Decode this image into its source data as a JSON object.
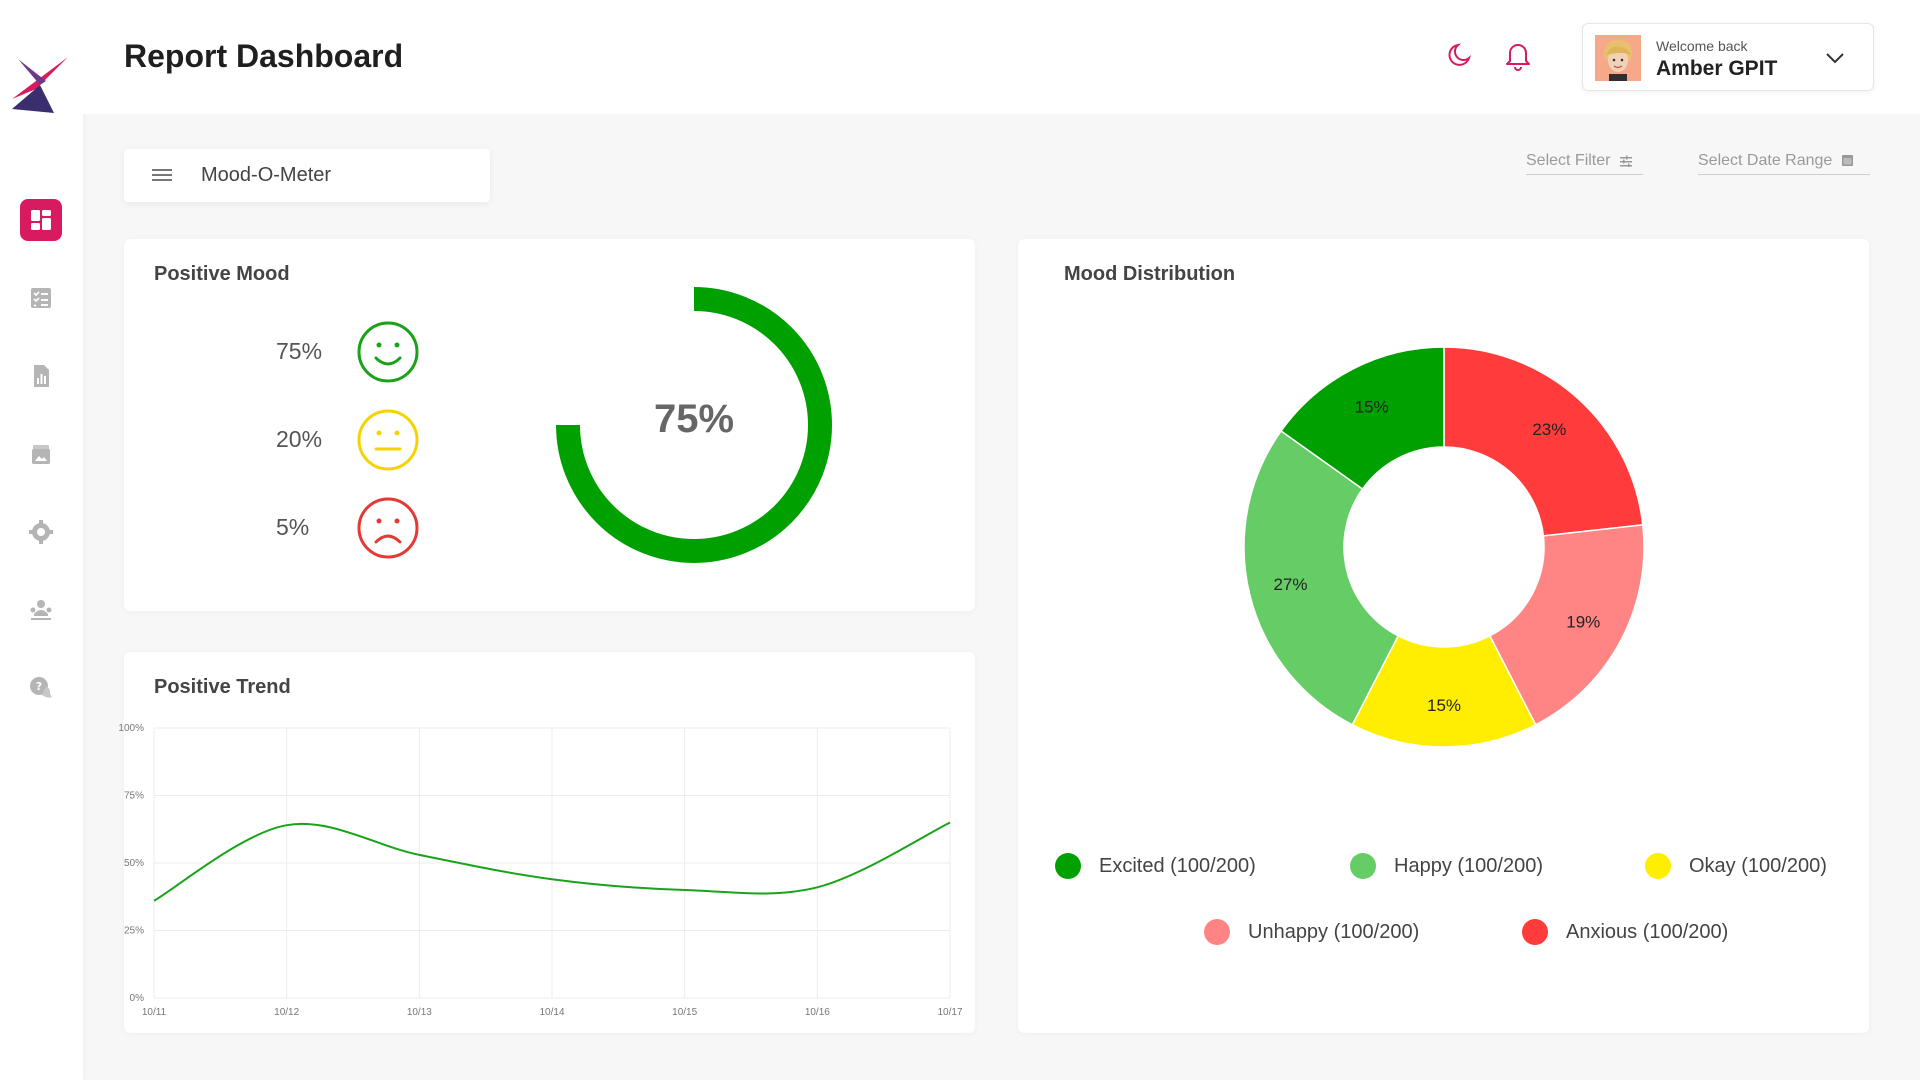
{
  "header": {
    "title": "Report Dashboard",
    "welcome": "Welcome back",
    "username": "Amber GPIT"
  },
  "toolbar": {
    "mood_select": "Mood-O-Meter",
    "filter_label": "Select Filter",
    "date_label": "Select Date Range"
  },
  "positive_mood": {
    "title": "Positive Mood",
    "rows": [
      {
        "pct": "75%",
        "color": "#1aa31a"
      },
      {
        "pct": "20%",
        "color": "#f5d300"
      },
      {
        "pct": "5%",
        "color": "#e53935"
      }
    ],
    "gauge_label": "75%",
    "gauge_value": 0.75,
    "gauge_color": "#00a000"
  },
  "positive_trend": {
    "title": "Positive Trend"
  },
  "mood_distribution": {
    "title": "Mood Distribution",
    "legend": [
      {
        "label": "Excited (100/200)",
        "color": "#00a000"
      },
      {
        "label": "Happy (100/200)",
        "color": "#66cc66"
      },
      {
        "label": "Okay (100/200)",
        "color": "#ffee00"
      },
      {
        "label": "Unhappy (100/200)",
        "color": "#ff8585"
      },
      {
        "label": "Anxious (100/200)",
        "color": "#ff3b3b"
      }
    ]
  },
  "chart_data": [
    {
      "type": "line",
      "x": [
        "10/11",
        "10/12",
        "10/13",
        "10/14",
        "10/15",
        "10/16",
        "10/17"
      ],
      "values": [
        36,
        64,
        53,
        44,
        40,
        41,
        65
      ],
      "y_ticks": [
        "0%",
        "25%",
        "50%",
        "75%",
        "100%"
      ],
      "ylim": [
        0,
        100
      ],
      "color": "#1aa31a",
      "grid": true
    },
    {
      "type": "pie",
      "donut": true,
      "slices": [
        {
          "label": "23%",
          "value": 23,
          "color": "#ff3b3b"
        },
        {
          "label": "19%",
          "value": 19,
          "color": "#ff8585"
        },
        {
          "label": "15%",
          "value": 15,
          "color": "#ffee00"
        },
        {
          "label": "27%",
          "value": 27,
          "color": "#66cc66"
        },
        {
          "label": "15%",
          "value": 15,
          "color": "#00a000"
        }
      ]
    }
  ]
}
